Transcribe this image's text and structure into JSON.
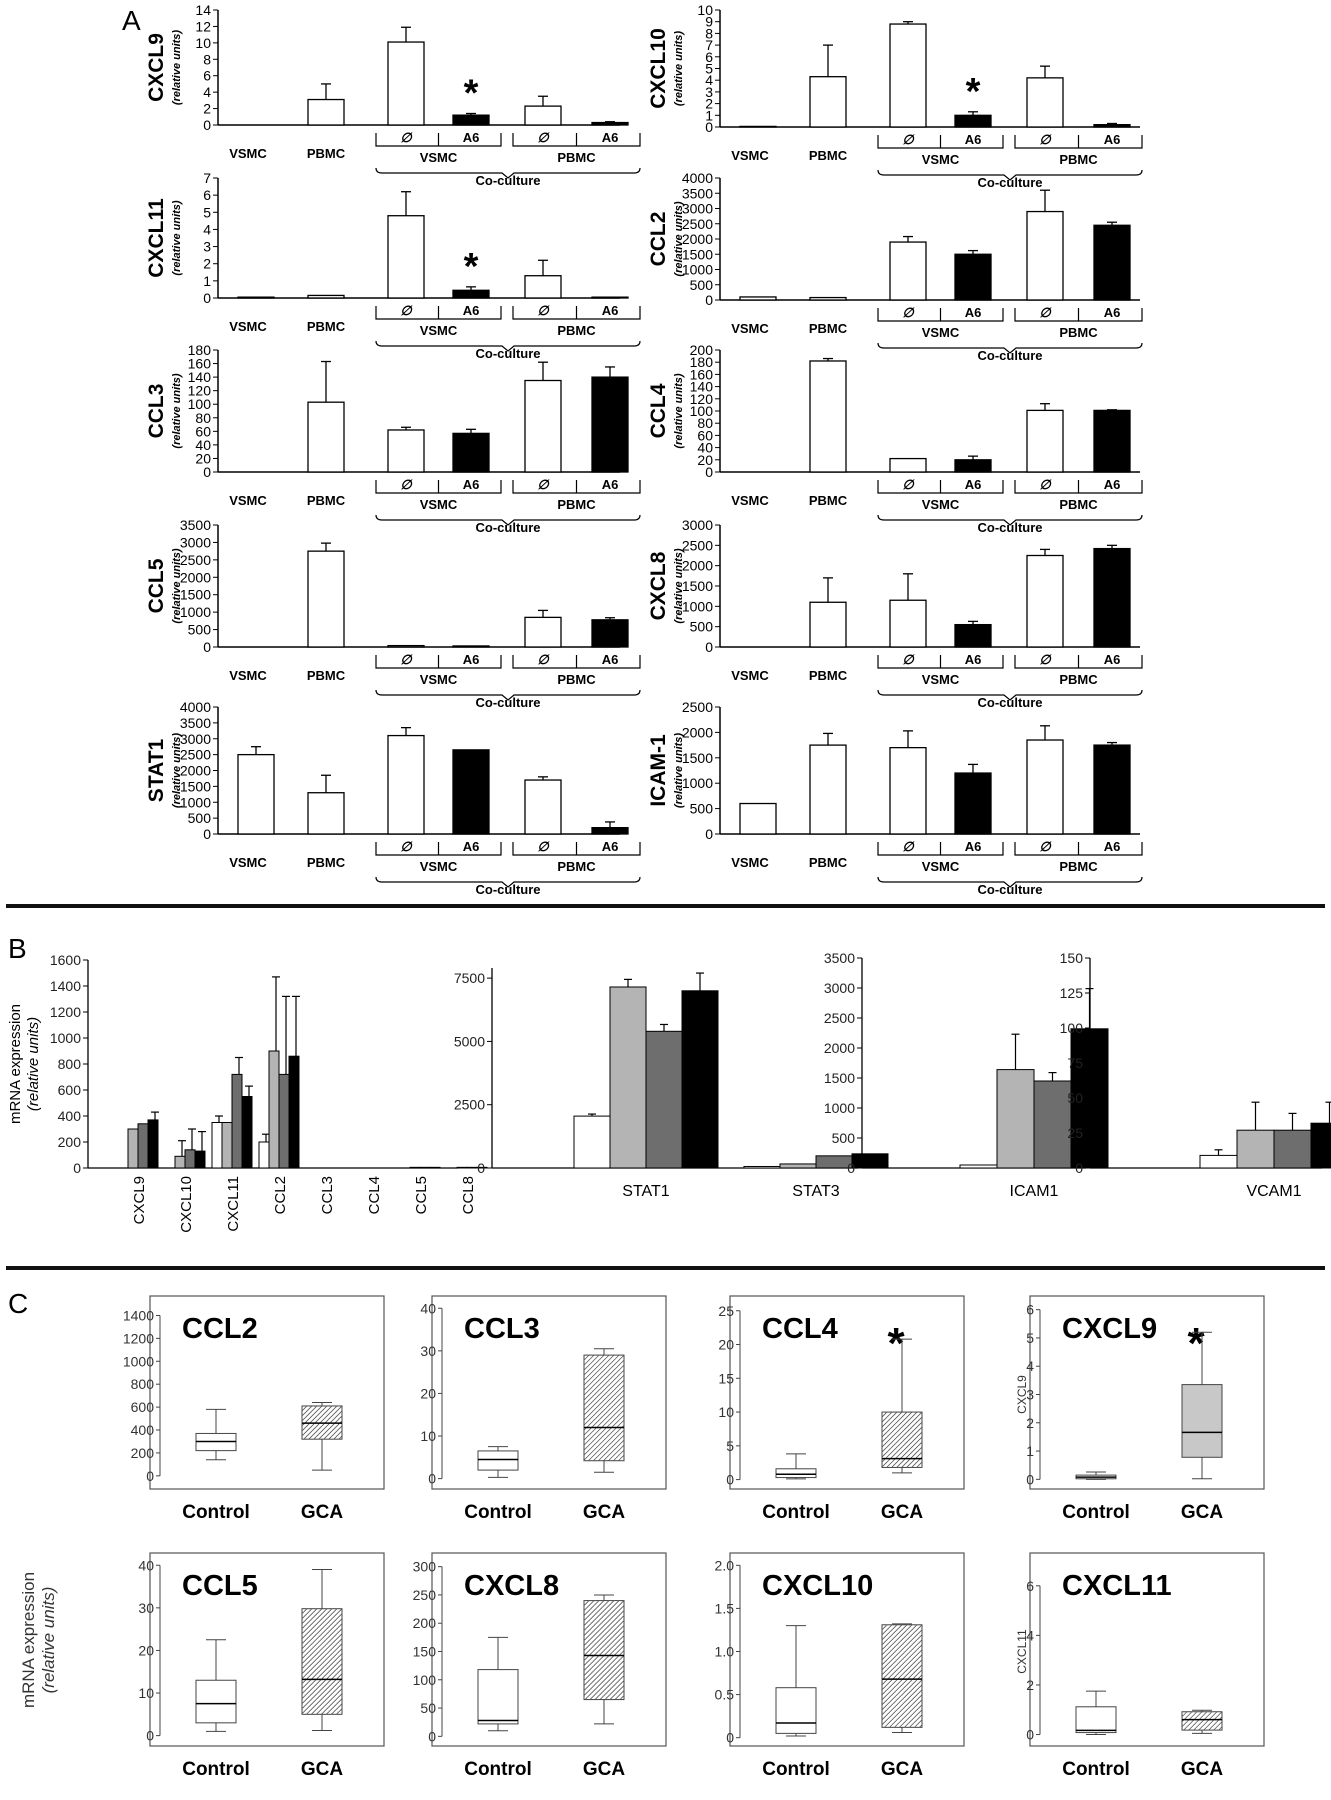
{
  "panel_labels": {
    "a": "A",
    "b": "B",
    "c": "C"
  },
  "chart_data": [
    {
      "type": "bar",
      "panel": "A",
      "title": "CXCL9",
      "ylabel": "(relative units)",
      "ylim": [
        0,
        14
      ],
      "yticks": [
        0,
        2,
        4,
        6,
        8,
        10,
        12,
        14
      ],
      "categories": [
        "VSMC",
        "PBMC",
        "VSMC ∅",
        "VSMC A6",
        "PBMC ∅",
        "PBMC A6"
      ],
      "values": [
        0,
        3.1,
        10.1,
        1.2,
        2.3,
        0.3
      ],
      "errors": [
        0,
        1.9,
        1.8,
        0.2,
        1.2,
        0.1
      ],
      "colors": [
        "white",
        "white",
        "white",
        "black",
        "white",
        "black"
      ],
      "asterisk": 3,
      "group_labels": {
        "vsmc": "VSMC",
        "pbmc": "PBMC",
        "sub_empty": "∅",
        "sub_a6": "A6",
        "coculture": "Co-culture"
      }
    },
    {
      "type": "bar",
      "panel": "A",
      "title": "CXCL10",
      "ylabel": "(relative units)",
      "ylim": [
        0,
        10
      ],
      "yticks": [
        0,
        1,
        2,
        3,
        4,
        5,
        6,
        7,
        8,
        9,
        10
      ],
      "categories": [
        "VSMC",
        "PBMC",
        "VSMC ∅",
        "VSMC A6",
        "PBMC ∅",
        "PBMC A6"
      ],
      "values": [
        0.05,
        4.3,
        8.8,
        1.0,
        4.2,
        0.2
      ],
      "errors": [
        0,
        2.7,
        0.2,
        0.3,
        1.0,
        0.1
      ],
      "colors": [
        "white",
        "white",
        "white",
        "black",
        "white",
        "black"
      ],
      "asterisk": 3,
      "group_labels": {
        "vsmc": "VSMC",
        "pbmc": "PBMC",
        "sub_empty": "∅",
        "sub_a6": "A6",
        "coculture": "Co-culture"
      }
    },
    {
      "type": "bar",
      "panel": "A",
      "title": "CXCL11",
      "ylabel": "(relative units)",
      "ylim": [
        0,
        7
      ],
      "yticks": [
        0,
        1,
        2,
        3,
        4,
        5,
        6,
        7
      ],
      "categories": [
        "VSMC",
        "PBMC",
        "VSMC ∅",
        "VSMC A6",
        "PBMC ∅",
        "PBMC A6"
      ],
      "values": [
        0.05,
        0.15,
        4.8,
        0.45,
        1.3,
        0.05
      ],
      "errors": [
        0,
        0,
        1.4,
        0.2,
        0.9,
        0
      ],
      "colors": [
        "white",
        "white",
        "white",
        "black",
        "white",
        "black"
      ],
      "asterisk": 3,
      "group_labels": {
        "vsmc": "VSMC",
        "pbmc": "PBMC",
        "sub_empty": "∅",
        "sub_a6": "A6",
        "coculture": "Co-culture"
      }
    },
    {
      "type": "bar",
      "panel": "A",
      "title": "CCL2",
      "ylabel": "(relative units)",
      "ylim": [
        0,
        4000
      ],
      "yticks": [
        0,
        500,
        1000,
        1500,
        2000,
        2500,
        3000,
        3500,
        4000
      ],
      "categories": [
        "VSMC",
        "PBMC",
        "VSMC ∅",
        "VSMC A6",
        "PBMC ∅",
        "PBMC A6"
      ],
      "values": [
        100,
        80,
        1900,
        1500,
        2900,
        2450
      ],
      "errors": [
        0,
        0,
        180,
        120,
        700,
        100
      ],
      "colors": [
        "white",
        "white",
        "white",
        "black",
        "white",
        "black"
      ],
      "asterisk": null,
      "group_labels": {
        "vsmc": "VSMC",
        "pbmc": "PBMC",
        "sub_empty": "∅",
        "sub_a6": "A6",
        "coculture": "Co-culture"
      }
    },
    {
      "type": "bar",
      "panel": "A",
      "title": "CCL3",
      "ylabel": "(relative units)",
      "ylim": [
        0,
        180
      ],
      "yticks": [
        0,
        20,
        40,
        60,
        80,
        100,
        120,
        140,
        160,
        180
      ],
      "categories": [
        "VSMC",
        "PBMC",
        "VSMC ∅",
        "VSMC A6",
        "PBMC ∅",
        "PBMC A6"
      ],
      "values": [
        0,
        103,
        62,
        57,
        135,
        140
      ],
      "errors": [
        0,
        60,
        4,
        6,
        27,
        15
      ],
      "colors": [
        "white",
        "white",
        "white",
        "black",
        "white",
        "black"
      ],
      "asterisk": null,
      "group_labels": {
        "vsmc": "VSMC",
        "pbmc": "PBMC",
        "sub_empty": "∅",
        "sub_a6": "A6",
        "coculture": "Co-culture"
      }
    },
    {
      "type": "bar",
      "panel": "A",
      "title": "CCL4",
      "ylabel": "(relative units)",
      "ylim": [
        0,
        200
      ],
      "yticks": [
        0,
        20,
        40,
        60,
        80,
        100,
        120,
        140,
        160,
        180,
        200
      ],
      "categories": [
        "VSMC",
        "PBMC",
        "VSMC ∅",
        "VSMC A6",
        "PBMC ∅",
        "PBMC A6"
      ],
      "values": [
        0,
        182,
        22,
        20,
        101,
        101
      ],
      "errors": [
        0,
        4,
        0,
        6,
        11,
        1
      ],
      "colors": [
        "white",
        "white",
        "white",
        "black",
        "white",
        "black"
      ],
      "asterisk": null,
      "group_labels": {
        "vsmc": "VSMC",
        "pbmc": "PBMC",
        "sub_empty": "∅",
        "sub_a6": "A6",
        "coculture": "Co-culture"
      }
    },
    {
      "type": "bar",
      "panel": "A",
      "title": "CCL5",
      "ylabel": "(relative units)",
      "ylim": [
        0,
        3500
      ],
      "yticks": [
        0,
        500,
        1000,
        1500,
        2000,
        2500,
        3000,
        3500
      ],
      "categories": [
        "VSMC",
        "PBMC",
        "VSMC ∅",
        "VSMC A6",
        "PBMC ∅",
        "PBMC A6"
      ],
      "values": [
        0,
        2750,
        40,
        30,
        850,
        780
      ],
      "errors": [
        0,
        230,
        0,
        0,
        200,
        60
      ],
      "colors": [
        "white",
        "white",
        "white",
        "black",
        "white",
        "black"
      ],
      "asterisk": null,
      "group_labels": {
        "vsmc": "VSMC",
        "pbmc": "PBMC",
        "sub_empty": "∅",
        "sub_a6": "A6",
        "coculture": "Co-culture"
      }
    },
    {
      "type": "bar",
      "panel": "A",
      "title": "CXCL8",
      "ylabel": "(relative units)",
      "ylim": [
        0,
        3000
      ],
      "yticks": [
        0,
        500,
        1000,
        1500,
        2000,
        2500,
        3000
      ],
      "categories": [
        "VSMC",
        "PBMC",
        "VSMC ∅",
        "VSMC A6",
        "PBMC ∅",
        "PBMC A6"
      ],
      "values": [
        0,
        1100,
        1150,
        550,
        2250,
        2420
      ],
      "errors": [
        0,
        600,
        650,
        80,
        150,
        80
      ],
      "colors": [
        "white",
        "white",
        "white",
        "black",
        "white",
        "black"
      ],
      "asterisk": null,
      "group_labels": {
        "vsmc": "VSMC",
        "pbmc": "PBMC",
        "sub_empty": "∅",
        "sub_a6": "A6",
        "coculture": "Co-culture"
      }
    },
    {
      "type": "bar",
      "panel": "A",
      "title": "STAT1",
      "ylabel": "(relative units)",
      "ylim": [
        0,
        4000
      ],
      "yticks": [
        0,
        500,
        1000,
        1500,
        2000,
        2500,
        3000,
        3500,
        4000
      ],
      "categories": [
        "VSMC",
        "PBMC",
        "VSMC ∅",
        "VSMC A6",
        "PBMC ∅",
        "PBMC A6"
      ],
      "values": [
        2500,
        1300,
        3100,
        2650,
        1700,
        200
      ],
      "errors": [
        250,
        550,
        250,
        0,
        100,
        180
      ],
      "colors": [
        "white",
        "white",
        "white",
        "black",
        "white",
        "black"
      ],
      "asterisk": null,
      "group_labels": {
        "vsmc": "VSMC",
        "pbmc": "PBMC",
        "sub_empty": "∅",
        "sub_a6": "A6",
        "coculture": "Co-culture"
      }
    },
    {
      "type": "bar",
      "panel": "A",
      "title": "ICAM-1",
      "ylabel": "(relative units)",
      "ylim": [
        0,
        2500
      ],
      "yticks": [
        0,
        500,
        1000,
        1500,
        2000,
        2500
      ],
      "categories": [
        "VSMC",
        "PBMC",
        "VSMC ∅",
        "VSMC A6",
        "PBMC ∅",
        "PBMC A6"
      ],
      "values": [
        600,
        1750,
        1700,
        1200,
        1850,
        1750
      ],
      "errors": [
        0,
        230,
        330,
        170,
        280,
        50
      ],
      "colors": [
        "white",
        "white",
        "white",
        "black",
        "white",
        "black"
      ],
      "asterisk": null,
      "group_labels": {
        "vsmc": "VSMC",
        "pbmc": "PBMC",
        "sub_empty": "∅",
        "sub_a6": "A6",
        "coculture": "Co-culture"
      }
    },
    {
      "type": "bar",
      "panel": "B",
      "ylabel": "mRNA expression",
      "ylabel2": "(relative units)",
      "ylim": [
        0,
        1600
      ],
      "yticks": [
        0,
        200,
        400,
        600,
        800,
        1000,
        1200,
        1400,
        1600
      ],
      "categories": [
        "CXCL9",
        "CXCL10",
        "CXCL11",
        "CCL2",
        "CCL3",
        "CCL4",
        "CCL5",
        "CCL8"
      ],
      "label_rotate": true,
      "series": [
        {
          "color": "#ffffff",
          "values": [
            0,
            0,
            350,
            200,
            0,
            0,
            0,
            0
          ],
          "errors": [
            0,
            0,
            50,
            60,
            0,
            0,
            0,
            0
          ]
        },
        {
          "color": "#b4b4b4",
          "values": [
            300,
            90,
            350,
            900,
            0,
            0,
            5,
            5
          ],
          "errors": [
            0,
            120,
            0,
            570,
            0,
            0,
            0,
            0
          ]
        },
        {
          "color": "#6e6e6e",
          "values": [
            340,
            140,
            720,
            720,
            0,
            0,
            5,
            5
          ],
          "errors": [
            0,
            160,
            130,
            600,
            0,
            0,
            0,
            0
          ]
        },
        {
          "color": "#000000",
          "values": [
            370,
            130,
            550,
            860,
            0,
            0,
            5,
            5
          ],
          "errors": [
            60,
            150,
            80,
            460,
            0,
            0,
            0,
            0
          ]
        }
      ]
    },
    {
      "type": "bar",
      "panel": "B",
      "ylim": [
        0,
        7500
      ],
      "yticks": [
        0,
        2500,
        5000,
        7500
      ],
      "ymax": 7900,
      "categories": [
        "STAT1",
        "STAT3"
      ],
      "series": [
        {
          "color": "#ffffff",
          "values": [
            2050,
            60
          ],
          "errors": [
            80,
            0
          ]
        },
        {
          "color": "#b4b4b4",
          "values": [
            7150,
            160
          ],
          "errors": [
            300,
            0
          ]
        },
        {
          "color": "#6e6e6e",
          "values": [
            5400,
            480
          ],
          "errors": [
            270,
            0
          ]
        },
        {
          "color": "#000000",
          "values": [
            7000,
            560
          ],
          "errors": [
            700,
            0
          ]
        }
      ]
    },
    {
      "type": "bar",
      "panel": "B",
      "ylim": [
        0,
        3500
      ],
      "yticks": [
        0,
        500,
        1000,
        1500,
        2000,
        2500,
        3000,
        3500
      ],
      "categories": [
        "ICAM1"
      ],
      "series": [
        {
          "color": "#ffffff",
          "values": [
            50
          ],
          "errors": [
            0
          ]
        },
        {
          "color": "#b4b4b4",
          "values": [
            1640
          ],
          "errors": [
            590
          ]
        },
        {
          "color": "#6e6e6e",
          "values": [
            1450
          ],
          "errors": [
            140
          ]
        },
        {
          "color": "#000000",
          "values": [
            2320
          ],
          "errors": [
            670
          ]
        }
      ]
    },
    {
      "type": "bar",
      "panel": "B",
      "ylim": [
        0,
        150
      ],
      "yticks": [
        0,
        25,
        50,
        75,
        100,
        125,
        150
      ],
      "categories": [
        "VCAM1"
      ],
      "series": [
        {
          "color": "#ffffff",
          "values": [
            9
          ],
          "errors": [
            4
          ]
        },
        {
          "color": "#b4b4b4",
          "values": [
            27
          ],
          "errors": [
            20
          ]
        },
        {
          "color": "#6e6e6e",
          "values": [
            27
          ],
          "errors": [
            12
          ]
        },
        {
          "color": "#000000",
          "values": [
            32
          ],
          "errors": [
            15
          ]
        }
      ]
    },
    {
      "type": "box",
      "panel": "C",
      "title": "CCL2",
      "ylim": [
        -80,
        1500
      ],
      "yticks": [
        0,
        200,
        400,
        600,
        800,
        1000,
        1200,
        1400
      ],
      "categories": [
        "Control",
        "GCA"
      ],
      "boxes": [
        {
          "min": 140,
          "q1": 220,
          "median": 300,
          "q3": 370,
          "max": 580
        },
        {
          "min": 50,
          "q1": 320,
          "median": 460,
          "q3": 610,
          "max": 640
        }
      ],
      "asterisk": false
    },
    {
      "type": "box",
      "panel": "C",
      "title": "CCL3",
      "ylim": [
        -1.5,
        41
      ],
      "yticks": [
        0,
        10,
        20,
        30,
        40
      ],
      "categories": [
        "Control",
        "GCA"
      ],
      "boxes": [
        {
          "min": 0.3,
          "q1": 2,
          "median": 4.5,
          "q3": 6.5,
          "max": 7.5
        },
        {
          "min": 1.5,
          "q1": 4.2,
          "median": 12,
          "q3": 29,
          "max": 30.5
        }
      ],
      "asterisk": false
    },
    {
      "type": "box",
      "panel": "C",
      "title": "CCL4",
      "ylim": [
        -0.8,
        26
      ],
      "yticks": [
        0,
        5,
        10,
        15,
        20,
        25
      ],
      "categories": [
        "Control",
        "GCA"
      ],
      "boxes": [
        {
          "min": 0.1,
          "q1": 0.3,
          "median": 0.8,
          "q3": 1.6,
          "max": 3.8
        },
        {
          "min": 1.0,
          "q1": 1.8,
          "median": 3.1,
          "q3": 10,
          "max": 20.8
        }
      ],
      "asterisk": true
    },
    {
      "type": "box",
      "panel": "C",
      "title": "CXCL9",
      "ylabel": "CXCL9",
      "ylim": [
        -0.2,
        6.2
      ],
      "yticks": [
        0,
        1,
        2,
        3,
        4,
        5,
        6
      ],
      "categories": [
        "Control",
        "GCA"
      ],
      "boxes": [
        {
          "min": 0,
          "q1": 0.02,
          "median": 0.08,
          "q3": 0.15,
          "max": 0.26
        },
        {
          "min": 0.02,
          "q1": 0.78,
          "median": 1.66,
          "q3": 3.35,
          "max": 5.2
        }
      ],
      "asterisk": true
    },
    {
      "type": "box",
      "panel": "C",
      "title": "CCL5",
      "ylim": [
        -1.5,
        41
      ],
      "yticks": [
        0,
        10,
        20,
        30,
        40
      ],
      "categories": [
        "Control",
        "GCA"
      ],
      "boxes": [
        {
          "min": 1,
          "q1": 3,
          "median": 7.5,
          "q3": 13,
          "max": 22.5
        },
        {
          "min": 1.2,
          "q1": 5,
          "median": 13.2,
          "q3": 29.8,
          "max": 39
        }
      ],
      "asterisk": false
    },
    {
      "type": "box",
      "panel": "C",
      "title": "CXCL8",
      "ylim": [
        -10,
        310
      ],
      "yticks": [
        0,
        50,
        100,
        150,
        200,
        250,
        300
      ],
      "categories": [
        "Control",
        "GCA"
      ],
      "boxes": [
        {
          "min": 10,
          "q1": 22,
          "median": 28,
          "q3": 118,
          "max": 175
        },
        {
          "min": 22,
          "q1": 65,
          "median": 143,
          "q3": 240,
          "max": 250
        }
      ],
      "asterisk": false
    },
    {
      "type": "box",
      "panel": "C",
      "title": "CXCL10",
      "ylim": [
        -0.05,
        2.05
      ],
      "yticks": [
        0,
        0.5,
        1.0,
        1.5,
        2.0
      ],
      "yticklabels": [
        "0",
        "0.5",
        "1.0",
        "1.5",
        "2.0"
      ],
      "categories": [
        "Control",
        "GCA"
      ],
      "boxes": [
        {
          "min": 0.02,
          "q1": 0.05,
          "median": 0.17,
          "q3": 0.58,
          "max": 1.3
        },
        {
          "min": 0.06,
          "q1": 0.12,
          "median": 0.68,
          "q3": 1.31,
          "max": 1.32
        }
      ],
      "asterisk": false
    },
    {
      "type": "box",
      "panel": "C",
      "title": "CXCL11",
      "ylabel": "CXCL11",
      "ylim": [
        -0.3,
        7
      ],
      "yticks": [
        0,
        2,
        4,
        6
      ],
      "categories": [
        "Control",
        "GCA"
      ],
      "boxes": [
        {
          "min": 0,
          "q1": 0.08,
          "median": 0.17,
          "q3": 1.12,
          "max": 1.75
        },
        {
          "min": 0.05,
          "q1": 0.18,
          "median": 0.6,
          "q3": 0.92,
          "max": 0.98
        }
      ],
      "asterisk": false
    }
  ],
  "panel_c_ylabel": {
    "line1": "mRNA expression",
    "line2": "(relative units)"
  }
}
